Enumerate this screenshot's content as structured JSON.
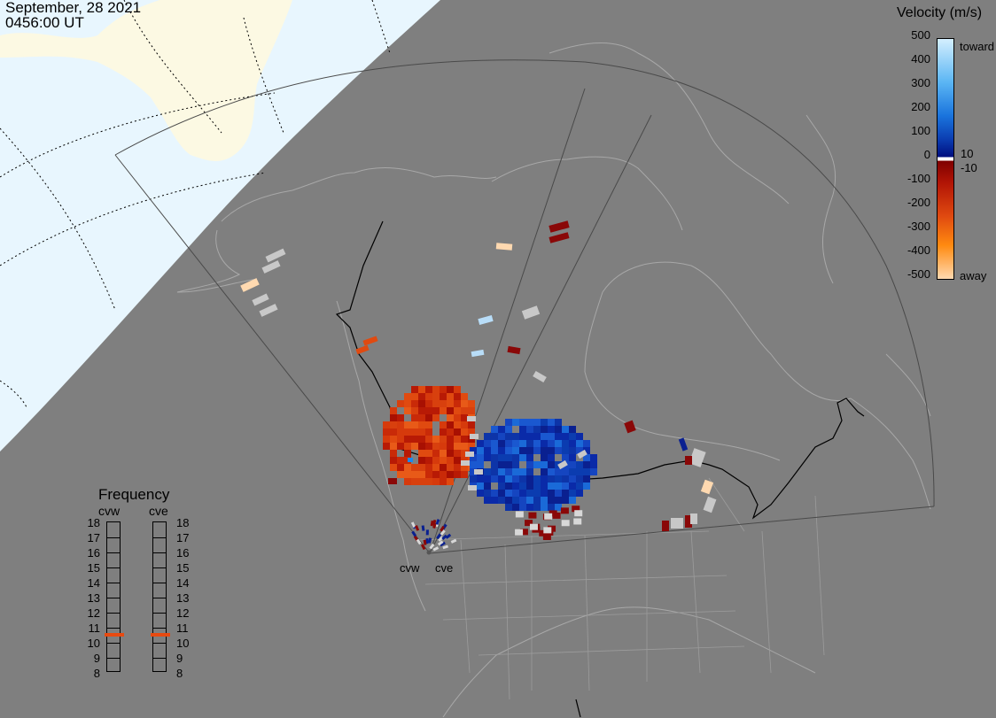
{
  "header": {
    "date": "September, 28 2021",
    "time": "0456:00 UT"
  },
  "velocity_legend": {
    "title": "Velocity (m/s)",
    "ticks": [
      "500",
      "400",
      "300",
      "200",
      "100",
      "0",
      "-100",
      "-200",
      "-300",
      "-400",
      "-500"
    ],
    "toward_label": "toward",
    "away_label": "away",
    "pos_threshold": "10",
    "neg_threshold": "-10",
    "colors": {
      "toward_top": "#cfeefe",
      "toward_mid": "#1a8aee",
      "toward_low": "#001890",
      "away_low": "#7a0808",
      "away_mid": "#e04a10",
      "away_top": "#ffd9b0",
      "ground_scatter": "#c8c8c8"
    }
  },
  "frequency_panel": {
    "title": "Frequency",
    "radars": [
      {
        "name": "cvw",
        "frequency_mhz": 11
      },
      {
        "name": "cve",
        "frequency_mhz": 11
      }
    ],
    "scale": [
      "18",
      "17",
      "16",
      "15",
      "14",
      "13",
      "12",
      "11",
      "10",
      "9",
      "8"
    ],
    "marker_color": "#e84a10"
  },
  "radar_sites": {
    "cvw_label": "cvw",
    "cve_label": "cve"
  }
}
